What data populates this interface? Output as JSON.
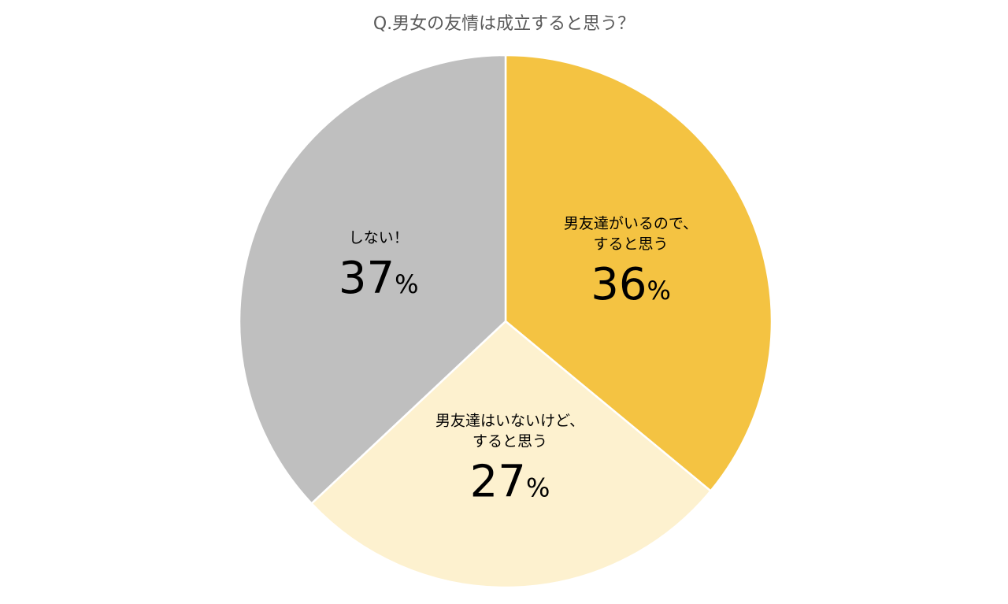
{
  "chart_data": {
    "type": "pie",
    "title": "Q.男女の友情は成立すると思う？",
    "unit": "%",
    "slices": [
      {
        "label_lines": [
          "男友達がいるので、",
          "すると思う"
        ],
        "value": 36,
        "color": "#F4C342"
      },
      {
        "label_lines": [
          "男友達はいないけど、",
          "すると思う"
        ],
        "value": 27,
        "color": "#FDF1CF"
      },
      {
        "label_lines": [
          "しない！"
        ],
        "value": 37,
        "color": "#BFBFBF"
      }
    ],
    "start": "12 o'clock",
    "direction": "clockwise",
    "legend": "none"
  }
}
